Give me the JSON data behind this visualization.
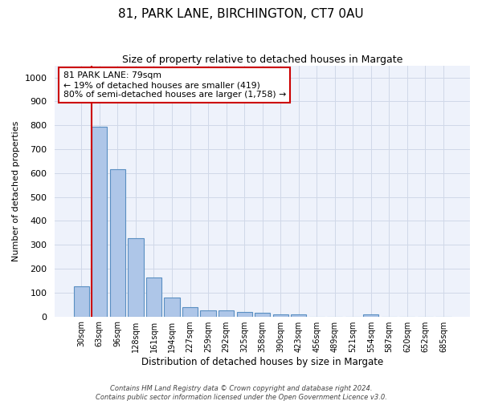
{
  "title": "81, PARK LANE, BIRCHINGTON, CT7 0AU",
  "subtitle": "Size of property relative to detached houses in Margate",
  "xlabel": "Distribution of detached houses by size in Margate",
  "ylabel": "Number of detached properties",
  "categories": [
    "30sqm",
    "63sqm",
    "96sqm",
    "128sqm",
    "161sqm",
    "194sqm",
    "227sqm",
    "259sqm",
    "292sqm",
    "325sqm",
    "358sqm",
    "390sqm",
    "423sqm",
    "456sqm",
    "489sqm",
    "521sqm",
    "554sqm",
    "587sqm",
    "620sqm",
    "652sqm",
    "685sqm"
  ],
  "values": [
    125,
    795,
    615,
    328,
    162,
    78,
    40,
    27,
    25,
    18,
    15,
    8,
    10,
    0,
    0,
    0,
    10,
    0,
    0,
    0,
    0
  ],
  "bar_color": "#aec6e8",
  "bar_edge_color": "#5a8fc2",
  "vline_color": "#cc0000",
  "annotation_line1": "81 PARK LANE: 79sqm",
  "annotation_line2": "← 19% of detached houses are smaller (419)",
  "annotation_line3": "80% of semi-detached houses are larger (1,758) →",
  "annotation_box_color": "#ffffff",
  "annotation_box_edge": "#cc0000",
  "ylim": [
    0,
    1050
  ],
  "yticks": [
    0,
    100,
    200,
    300,
    400,
    500,
    600,
    700,
    800,
    900,
    1000
  ],
  "grid_color": "#d0d8e8",
  "background_color": "#eef2fb",
  "footer_line1": "Contains HM Land Registry data © Crown copyright and database right 2024.",
  "footer_line2": "Contains public sector information licensed under the Open Government Licence v3.0."
}
